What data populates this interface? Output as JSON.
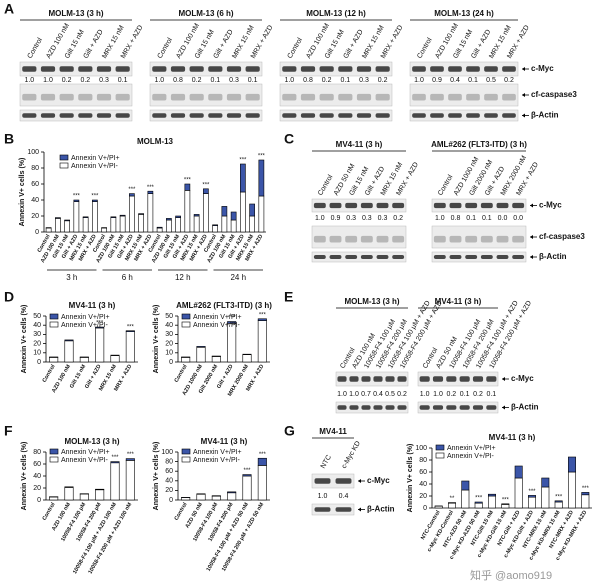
{
  "panel_labels": [
    "A",
    "B",
    "C",
    "D",
    "E",
    "F",
    "G"
  ],
  "blot_panels": [
    {
      "rows": [
        "c-Myc",
        "cf-caspase3",
        "β-Actin"
      ],
      "groups": [
        {
          "title": "MOLM-13 (3 h)",
          "lanes": [
            "Control",
            "AZD 100 nM",
            "Gilt 15 nM",
            "Gilt + AZD",
            "MRX 15 nM",
            "MRX + AZD"
          ],
          "values": [
            "1.0",
            "1.0",
            "0.2",
            "0.2",
            "0.3",
            "0.1"
          ]
        },
        {
          "title": "MOLM-13 (6 h)",
          "lanes": [
            "Control",
            "AZD 100 nM",
            "Gilt 15 nM",
            "Gilt + AZD",
            "MRX 15 nM",
            "MRX + AZD"
          ],
          "values": [
            "1.0",
            "0.8",
            "0.2",
            "0.1",
            "0.3",
            "0.1"
          ]
        },
        {
          "title": "MOLM-13 (12 h)",
          "lanes": [
            "Control",
            "AZD 100 nM",
            "Gilt 15 nM",
            "Gilt + AZD",
            "MRX 15 nM",
            "MRX + AZD"
          ],
          "values": [
            "1.0",
            "0.8",
            "0.2",
            "0.1",
            "0.3",
            "0.2"
          ]
        },
        {
          "title": "MOLM-13 (24 h)",
          "lanes": [
            "Control",
            "AZD 100 nM",
            "Gilt 15 nM",
            "Gilt + AZD",
            "MRX 15 nM",
            "MRX + AZD"
          ],
          "values": [
            "1.0",
            "0.9",
            "0.4",
            "0.1",
            "0.5",
            "0.2"
          ]
        }
      ]
    },
    {
      "rows": [
        "c-Myc",
        "cf-caspase3",
        "β-Actin"
      ],
      "groups": [
        {
          "title": "MV4-11 (3 h)",
          "lanes": [
            "Control",
            "AZD 50 nM",
            "Gilt 15 nM",
            "Gilt + AZD",
            "MRX 15 nM",
            "MRX + AZD"
          ],
          "values": [
            "1.0",
            "0.9",
            "0.3",
            "0.3",
            "0.3",
            "0.2"
          ]
        },
        {
          "title": "AML#262 (FLT3-ITD) (3 h)",
          "lanes": [
            "Control",
            "AZD 1000 nM",
            "Gilt 2000 nM",
            "Gilt + AZD",
            "MRX 2000 nM",
            "MRX + AZD"
          ],
          "values": [
            "1.0",
            "0.8",
            "0.1",
            "0.1",
            "0.0",
            "0.0"
          ]
        }
      ]
    },
    {
      "rows": [
        "c-Myc",
        "β-Actin"
      ],
      "groups": [
        {
          "title": "MOLM-13 (3 h)",
          "lanes": [
            "Control",
            "AZD 100 nM",
            "10058-F4 100 μM",
            "10058-F4 200 μM",
            "10058-F4 100 μM + AZD",
            "10058-F4 200 μM + AZD"
          ],
          "values": [
            "1.0",
            "1.0",
            "0.7",
            "0.4",
            "0.5",
            "0.2"
          ]
        },
        {
          "title": "MV4-11 (3 h)",
          "lanes": [
            "Control",
            "AZD 50 nM",
            "10058-F4 100 μM",
            "10058-F4 200 μM",
            "10058-F4 100 μM + AZD",
            "10058-F4 200 μM + AZD"
          ],
          "values": [
            "1.0",
            "1.0",
            "0.2",
            "0.1",
            "0.2",
            "0.1"
          ]
        }
      ]
    },
    {
      "rows": [
        "c-Myc",
        "β-Actin"
      ],
      "groups": [
        {
          "title": "MV4-11",
          "lanes": [
            "NTC",
            "c-Myc KD"
          ],
          "values": [
            "1.0",
            "0.4"
          ]
        }
      ]
    }
  ],
  "chart_data": [
    {
      "type": "bar",
      "title": "MOLM-13",
      "y_label": "Annexin V+ cells (%)",
      "groups": [
        "3 h",
        "6 h",
        "12 h",
        "24 h"
      ],
      "categories": [
        "Control",
        "AZD 100 nM",
        "Gilt 15 nM",
        "Gilt + AZD",
        "MRX 15 nM",
        "MRX + AZD",
        "Control",
        "AZD 100 nM",
        "Gilt 15 nM",
        "Gilt + AZD",
        "MRX 15 nM",
        "MRX + AZD",
        "Control",
        "AZD 100 nM",
        "Gilt 15 nM",
        "Gilt + AZD",
        "MRX 15 nM",
        "MRX + AZD",
        "Control",
        "AZD 100 nM",
        "Gilt 15 nM",
        "Gilt + AZD",
        "MRX 15 nM",
        "MRX + AZD"
      ],
      "series": [
        {
          "name": "Annexin V+/PI+",
          "color": "#3b55a8",
          "values": [
            0.5,
            1,
            1,
            2,
            1,
            2,
            0.5,
            1,
            1,
            3,
            1,
            3,
            1,
            2,
            2,
            8,
            2,
            6,
            1,
            12,
            10,
            35,
            15,
            45
          ]
        },
        {
          "name": "Annexin V+/PI-",
          "color": "#ffffff",
          "values": [
            5,
            17,
            14,
            38,
            18,
            38,
            5,
            18,
            20,
            45,
            22,
            48,
            5,
            15,
            18,
            52,
            20,
            48,
            8,
            20,
            15,
            50,
            20,
            45
          ]
        }
      ],
      "annotations": [
        null,
        null,
        null,
        "***",
        null,
        "***",
        null,
        null,
        null,
        "***",
        null,
        "***",
        null,
        null,
        null,
        "***",
        null,
        "***",
        null,
        null,
        null,
        "***",
        null,
        "***"
      ],
      "ylim": [
        0,
        100
      ],
      "yticks": [
        0,
        20,
        40,
        60,
        80,
        100
      ]
    },
    {
      "type": "bar",
      "title": "MV4-11 (3 h)",
      "y_label": "Annexin V+ cells (%)",
      "categories": [
        "Control",
        "AZD 100 nM",
        "Gilt 15 nM",
        "Gilt + AZD",
        "MRX 15 nM",
        "MRX + AZD"
      ],
      "series": [
        {
          "name": "Annexin V+/PI+",
          "color": "#3b55a8",
          "values": [
            0.5,
            1,
            0.5,
            1,
            0.5,
            1
          ]
        },
        {
          "name": "Annexin V+/PI-",
          "color": "#ffffff",
          "values": [
            5,
            23,
            5,
            37,
            7,
            33
          ]
        }
      ],
      "annotations": [
        null,
        null,
        null,
        "***",
        null,
        "***"
      ],
      "ylim": [
        0,
        50
      ],
      "yticks": [
        0,
        10,
        20,
        30,
        40,
        50
      ]
    },
    {
      "type": "bar",
      "title": "AML#262 (FLT3-ITD) (3 h)",
      "y_label": "Annexin V+ cells (%)",
      "categories": [
        "Control",
        "AZD 1000 nM",
        "Gilt 2000 nM",
        "Gilt + AZD",
        "MRX 2000 nM",
        "MRX + AZD"
      ],
      "series": [
        {
          "name": "Annexin V+/PI+",
          "color": "#3b55a8",
          "values": [
            0.5,
            1,
            0.5,
            2,
            0.5,
            2
          ]
        },
        {
          "name": "Annexin V+/PI-",
          "color": "#ffffff",
          "values": [
            5,
            16,
            6,
            42,
            8,
            45
          ]
        }
      ],
      "annotations": [
        null,
        null,
        null,
        "***",
        null,
        "***"
      ],
      "ylim": [
        0,
        50
      ],
      "yticks": [
        0,
        10,
        20,
        30,
        40,
        50
      ]
    },
    {
      "type": "bar",
      "title": "MOLM-13 (3 h)",
      "y_label": "Annexin V+ cells (%)",
      "categories": [
        "Control",
        "AZD 100 nM",
        "10058-F4 100 μM",
        "10058-F4 200 μM",
        "10058-F4 100 μM + AZD 100 nM",
        "10058-F4 200 μM + AZD 100 nM"
      ],
      "series": [
        {
          "name": "Annexin V+/PI+",
          "color": "#3b55a8",
          "values": [
            0.5,
            1,
            0.5,
            1,
            2,
            3
          ]
        },
        {
          "name": "Annexin V+/PI-",
          "color": "#ffffff",
          "values": [
            5,
            21,
            10,
            17,
            62,
            66
          ]
        }
      ],
      "annotations": [
        null,
        null,
        null,
        null,
        "***",
        "***"
      ],
      "ylim": [
        0,
        80
      ],
      "yticks": [
        0,
        20,
        40,
        60,
        80
      ]
    },
    {
      "type": "bar",
      "title": "MV4-11 (3 h)",
      "y_label": "Annexin V+ cells (%)",
      "categories": [
        "Control",
        "AZD 50 nM",
        "10058-F4 100 μM",
        "10058-F4 200 μM",
        "10058-F4 100 μM + AZD 50 nM",
        "10058-F4 200 μM + AZD 50 nM"
      ],
      "series": [
        {
          "name": "Annexin V+/PI+",
          "color": "#3b55a8",
          "values": [
            0.5,
            1,
            1,
            2,
            3,
            15
          ]
        },
        {
          "name": "Annexin V+/PI-",
          "color": "#ffffff",
          "values": [
            5,
            12,
            8,
            15,
            50,
            72
          ]
        }
      ],
      "annotations": [
        null,
        null,
        null,
        null,
        "***",
        "***"
      ],
      "ylim": [
        0,
        100
      ],
      "yticks": [
        0,
        20,
        40,
        60,
        80,
        100
      ]
    },
    {
      "type": "bar",
      "title": "MV4-11 (3 h)",
      "y_label": "Annexin V+ cells (%)",
      "categories": [
        "NTC-Control",
        "c-Myc KD-Control",
        "NTC-AZD 50 nM",
        "c-Myc KD-AZD 50 nM",
        "NTC-Gilt 15 nM",
        "c-Myc KD-Gilt 15 nM",
        "NTC-Gilt + AZD",
        "c-Myc KD-Gilt + AZD",
        "NTC-MRX 15 nM",
        "c-Myc KD-MRX 15 nM",
        "NTC-MRX + AZD",
        "c-Myc KD-MRX + AZD"
      ],
      "series": [
        {
          "name": "Annexin V+/PI+",
          "color": "#3b55a8",
          "values": [
            0.5,
            1,
            15,
            2,
            3,
            1,
            20,
            3,
            15,
            2,
            25,
            4
          ]
        },
        {
          "name": "Annexin V+/PI-",
          "color": "#ffffff",
          "values": [
            3,
            8,
            30,
            8,
            20,
            6,
            50,
            18,
            35,
            10,
            60,
            22
          ]
        }
      ],
      "annotations": [
        null,
        "**",
        null,
        "***",
        null,
        "***",
        null,
        "***",
        null,
        "***",
        null,
        "***"
      ],
      "ylim": [
        0,
        100
      ],
      "yticks": [
        0,
        20,
        40,
        60,
        80,
        100
      ]
    }
  ],
  "watermark": "知乎 @aomo919"
}
